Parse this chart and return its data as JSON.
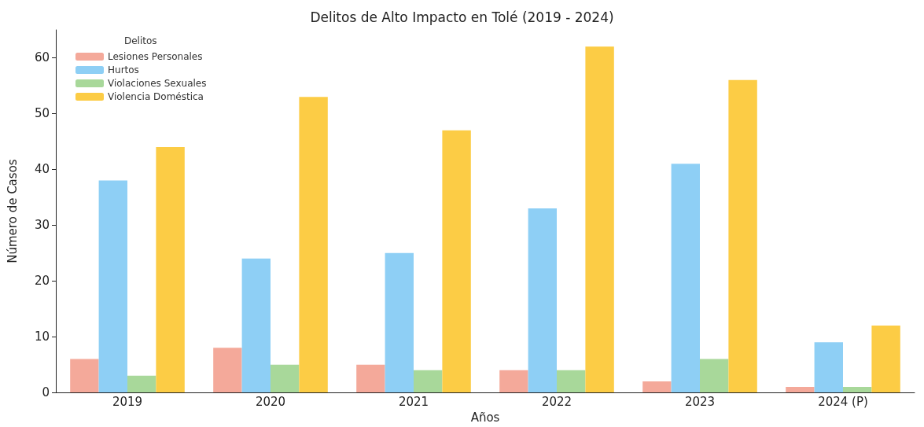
{
  "chart_data": {
    "type": "bar",
    "title": "Delitos de Alto Impacto en Tolé (2019 - 2024)",
    "xlabel": "Años",
    "ylabel": "Número de Casos",
    "legend_title": "Delitos",
    "legend": "top left",
    "categories": [
      "2019",
      "2020",
      "2021",
      "2022",
      "2023",
      "2024 (P)"
    ],
    "series": [
      {
        "name": "Lesiones Personales",
        "color": "#f4a99a",
        "values": [
          6,
          8,
          5,
          4,
          2,
          1
        ]
      },
      {
        "name": "Hurtos",
        "color": "#8ecff5",
        "values": [
          38,
          24,
          25,
          33,
          41,
          9
        ]
      },
      {
        "name": "Violaciones Sexuales",
        "color": "#a8d89a",
        "values": [
          3,
          5,
          4,
          4,
          6,
          1
        ]
      },
      {
        "name": "Violencia Doméstica",
        "color": "#fccc45",
        "values": [
          44,
          53,
          47,
          62,
          56,
          12
        ]
      }
    ],
    "ylim": [
      0,
      65
    ],
    "yticks": [
      0,
      10,
      20,
      30,
      40,
      50,
      60
    ],
    "grid": false
  }
}
